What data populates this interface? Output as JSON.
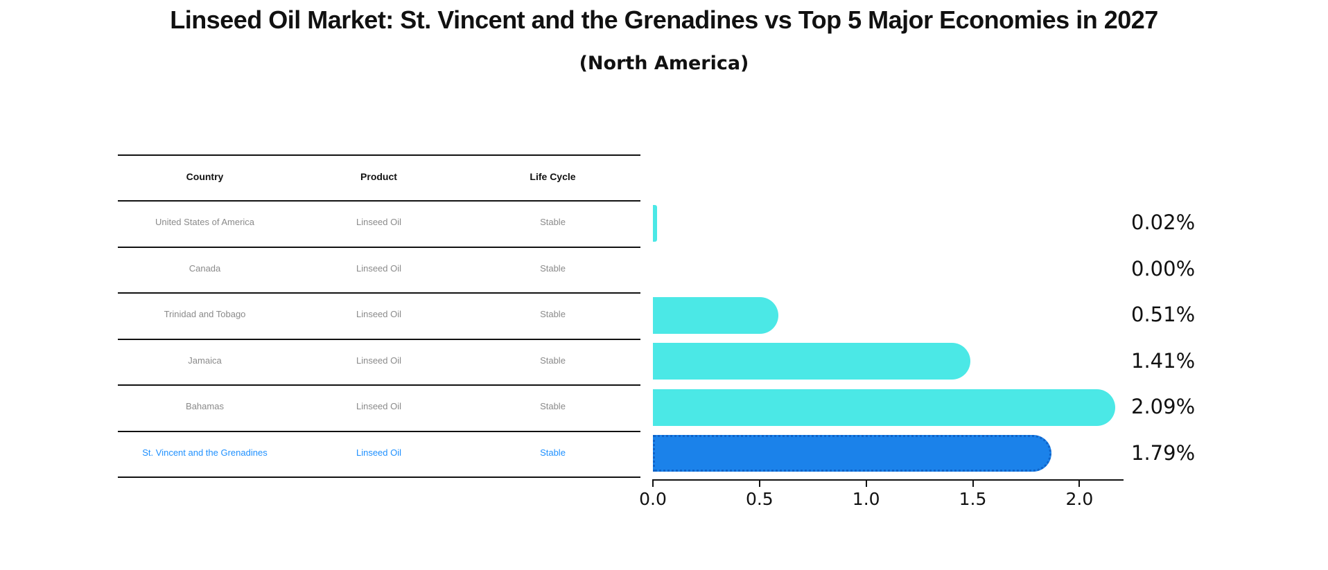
{
  "title": "Linseed Oil Market: St. Vincent and the Grenadines vs Top 5 Major Economies in 2027",
  "subtitle": "(North America)",
  "table": {
    "headers": [
      "Country",
      "Product",
      "Life Cycle"
    ],
    "rows": [
      {
        "country": "United States of America",
        "product": "Linseed Oil",
        "life_cycle": "Stable",
        "highlighted": false
      },
      {
        "country": "Canada",
        "product": "Linseed Oil",
        "life_cycle": "Stable",
        "highlighted": false
      },
      {
        "country": "Trinidad and Tobago",
        "product": "Linseed Oil",
        "life_cycle": "Stable",
        "highlighted": false
      },
      {
        "country": "Jamaica",
        "product": "Linseed Oil",
        "life_cycle": "Stable",
        "highlighted": false
      },
      {
        "country": "Bahamas",
        "product": "Linseed Oil",
        "life_cycle": "Stable",
        "highlighted": false
      },
      {
        "country": "St. Vincent and the Grenadines",
        "product": "Linseed Oil",
        "life_cycle": "Stable",
        "highlighted": true
      }
    ]
  },
  "chart_data": {
    "type": "bar",
    "orientation": "horizontal",
    "title": "Linseed Oil Market: St. Vincent and the Grenadines vs Top 5 Major Economies in 2027",
    "subtitle": "(North America)",
    "categories": [
      "United States of America",
      "Canada",
      "Trinidad and Tobago",
      "Jamaica",
      "Bahamas",
      "St. Vincent and the Grenadines"
    ],
    "values": [
      0.02,
      0.0,
      0.51,
      1.41,
      2.09,
      1.79
    ],
    "value_labels": [
      "0.02%",
      "0.00%",
      "0.51%",
      "1.41%",
      "2.09%",
      "1.79%"
    ],
    "x_ticks": [
      "0.0",
      "0.5",
      "1.0",
      "1.5",
      "2.0"
    ],
    "x_tick_values": [
      0.0,
      0.5,
      1.0,
      1.5,
      2.0
    ],
    "xlim": [
      0,
      2.2
    ],
    "grid": false,
    "legend": false,
    "highlight_index": 5
  },
  "colors": {
    "bar": "#4BE8E6",
    "highlight_bar": "#1B82EA",
    "highlight_border": "#0f63c8",
    "highlight_text": "#1E90FF",
    "table_text": "#8a8a8a",
    "axis": "#111111"
  }
}
